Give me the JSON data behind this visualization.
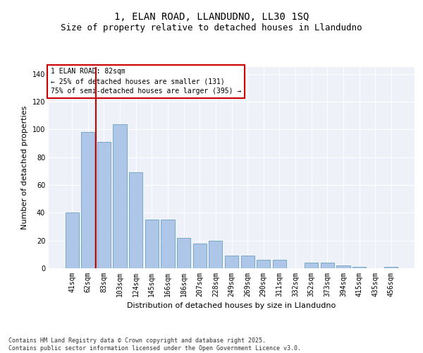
{
  "title_line1": "1, ELAN ROAD, LLANDUDNO, LL30 1SQ",
  "title_line2": "Size of property relative to detached houses in Llandudno",
  "xlabel": "Distribution of detached houses by size in Llandudno",
  "ylabel": "Number of detached properties",
  "categories": [
    "41sqm",
    "62sqm",
    "83sqm",
    "103sqm",
    "124sqm",
    "145sqm",
    "166sqm",
    "186sqm",
    "207sqm",
    "228sqm",
    "249sqm",
    "269sqm",
    "290sqm",
    "311sqm",
    "332sqm",
    "352sqm",
    "373sqm",
    "394sqm",
    "415sqm",
    "435sqm",
    "456sqm"
  ],
  "values": [
    40,
    98,
    91,
    104,
    69,
    35,
    35,
    22,
    18,
    20,
    9,
    9,
    6,
    6,
    0,
    4,
    4,
    2,
    1,
    0,
    1
  ],
  "bar_color": "#aec6e8",
  "bar_edge_color": "#6a9fc0",
  "background_color": "#eef2f8",
  "grid_color": "#ffffff",
  "annotation_box_text": "1 ELAN ROAD: 82sqm\n← 25% of detached houses are smaller (131)\n75% of semi-detached houses are larger (395) →",
  "annotation_box_color": "#cc0000",
  "vline_color": "#cc0000",
  "vline_x": 1.5,
  "ylim": [
    0,
    145
  ],
  "yticks": [
    0,
    20,
    40,
    60,
    80,
    100,
    120,
    140
  ],
  "footnote": "Contains HM Land Registry data © Crown copyright and database right 2025.\nContains public sector information licensed under the Open Government Licence v3.0.",
  "title_fontsize": 10,
  "subtitle_fontsize": 9,
  "axis_label_fontsize": 8,
  "tick_fontsize": 7,
  "annotation_fontsize": 7,
  "footnote_fontsize": 6
}
